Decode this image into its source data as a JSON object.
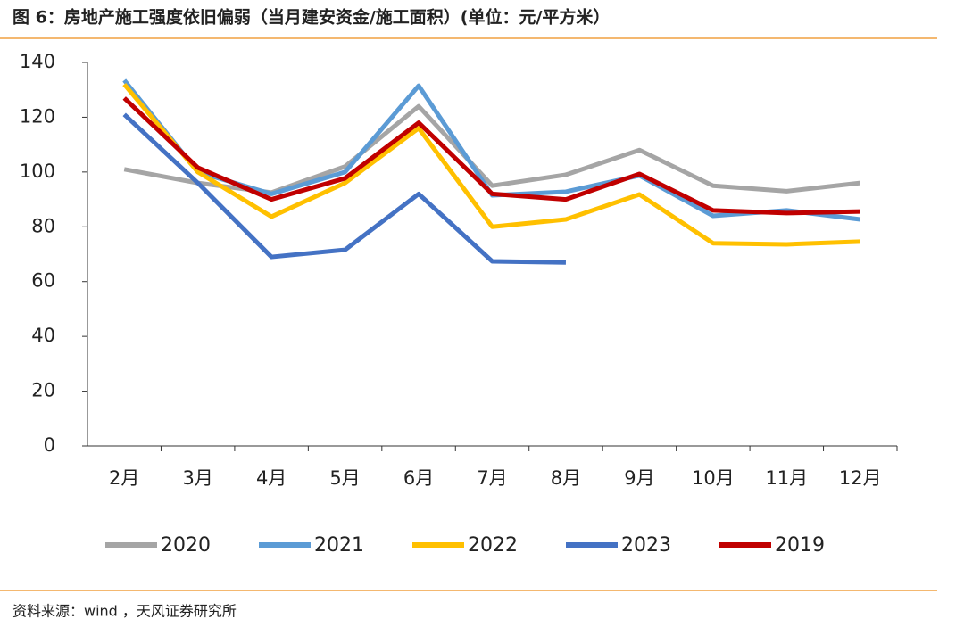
{
  "chart_data": {
    "type": "line",
    "title": "图 6：房地产施工强度依旧偏弱（当月建安资金/施工面积）(单位：元/平方米）",
    "source": "资料来源：wind ，天风证券研究所",
    "categories": [
      "2月",
      "3月",
      "4月",
      "5月",
      "6月",
      "7月",
      "8月",
      "9月",
      "10月",
      "11月",
      "12月"
    ],
    "series": [
      {
        "name": "2020",
        "color": "#a5a5a5",
        "values": [
          101,
          96,
          92.5,
          102,
          124,
          95,
          99,
          108,
          95,
          93,
          96
        ]
      },
      {
        "name": "2021",
        "color": "#5b9bd5",
        "values": [
          133.5,
          100,
          92,
          100,
          131.5,
          91.5,
          92.8,
          98.7,
          84,
          86,
          82.7
        ]
      },
      {
        "name": "2022",
        "color": "#ffc000",
        "values": [
          132,
          100,
          83.7,
          96,
          116,
          80,
          82.7,
          91.8,
          74,
          73.6,
          74.6
        ]
      },
      {
        "name": "2023",
        "color": "#4472c4",
        "values": [
          121,
          96,
          69,
          71.6,
          92,
          67.4,
          67,
          null,
          null,
          null,
          null
        ]
      },
      {
        "name": "2019",
        "color": "#c00000",
        "values": [
          127,
          101.6,
          90,
          97.7,
          118,
          92,
          90,
          99.3,
          86,
          85,
          85.6
        ]
      }
    ],
    "ylim": [
      0,
      140
    ],
    "yticks": [
      0,
      20,
      40,
      60,
      80,
      100,
      120,
      140
    ]
  }
}
